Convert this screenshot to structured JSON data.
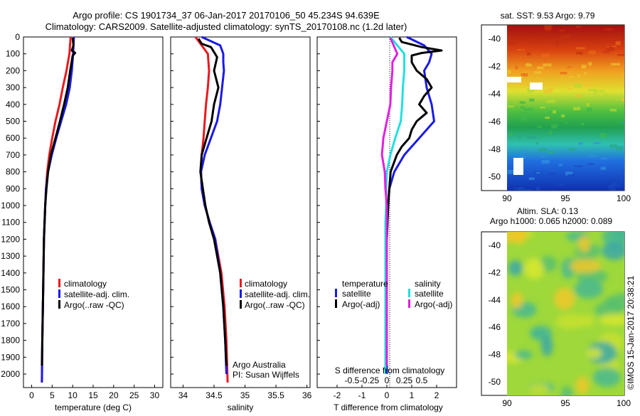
{
  "header": {
    "title_line1": "Argo profile: CS 1901734_37 06-Jan-2017 20170106_50 45.234S 94.639E",
    "title_line2": "Climatology: CARS2009. Satellite-adjusted climatology: synTS_20170108.nc (1.2d later)"
  },
  "colors": {
    "red": "#e8191f",
    "blue": "#1a1ae6",
    "black": "#000000",
    "cyan": "#22e0e0",
    "magenta": "#e020e0"
  },
  "depth_ticks": [
    "0",
    "100",
    "200",
    "300",
    "400",
    "500",
    "600",
    "700",
    "800",
    "900",
    "1000",
    "1100",
    "1200",
    "1300",
    "1400",
    "1500",
    "1600",
    "1700",
    "1800",
    "1900",
    "2000"
  ],
  "chart_data": [
    {
      "type": "line",
      "xlabel": "temperature (deg C)",
      "xticks": [
        "0",
        "5",
        "10",
        "15",
        "20",
        "25",
        "30"
      ],
      "xlim": [
        -2,
        32
      ],
      "ylim": [
        2080,
        0
      ],
      "legend": [
        "climatology",
        "satellite-adj. clim.",
        "Argo(..raw -QC)"
      ],
      "series": [
        {
          "name": "climatology",
          "color": "red",
          "depth": [
            0,
            100,
            200,
            300,
            400,
            500,
            600,
            700,
            800,
            900,
            1000,
            1200,
            1500,
            1800,
            2050
          ],
          "values": [
            9.5,
            9.2,
            8.5,
            7.6,
            6.8,
            5.8,
            5.0,
            4.3,
            3.8,
            3.5,
            3.3,
            3.0,
            2.8,
            2.6,
            2.5
          ]
        },
        {
          "name": "satellite-adj. clim.",
          "color": "blue",
          "depth": [
            0,
            100,
            200,
            300,
            400,
            500,
            600,
            700,
            800,
            900,
            1000,
            1200,
            1500,
            1800,
            2050
          ],
          "values": [
            10.3,
            10.1,
            9.8,
            9.3,
            8.4,
            7.2,
            6.0,
            4.9,
            4.0,
            3.5,
            3.3,
            3.0,
            2.8,
            2.6,
            2.5
          ]
        },
        {
          "name": "Argo(..raw -QC)",
          "color": "black",
          "depth": [
            5,
            50,
            80,
            95,
            110,
            200,
            300,
            400,
            500,
            600,
            700,
            800,
            900,
            1000,
            1200,
            1500,
            1800,
            1950
          ],
          "values": [
            10.0,
            10.2,
            9.8,
            10.6,
            10.0,
            9.4,
            8.8,
            7.9,
            6.9,
            5.8,
            4.7,
            4.0,
            3.6,
            3.3,
            3.0,
            2.8,
            2.6,
            2.5
          ]
        }
      ]
    },
    {
      "type": "line",
      "xlabel": "salinity",
      "xticks": [
        "34",
        "34.5",
        "35",
        "35.5",
        "36"
      ],
      "xlim": [
        33.8,
        36.05
      ],
      "ylim": [
        2080,
        0
      ],
      "legend": [
        "climatology",
        "satellite-adj. clim.",
        "Argo(..raw -QC)"
      ],
      "annotation": [
        "Argo Australia",
        "PI: Susan Wijffels"
      ],
      "series": [
        {
          "name": "climatology",
          "color": "red",
          "depth": [
            0,
            50,
            100,
            200,
            300,
            400,
            500,
            600,
            700,
            800,
            900,
            1000,
            1100,
            1200,
            1400,
            1600,
            1800,
            2050
          ],
          "values": [
            34.2,
            34.3,
            34.4,
            34.42,
            34.4,
            34.37,
            34.35,
            34.33,
            34.3,
            34.29,
            34.3,
            34.35,
            34.43,
            34.52,
            34.62,
            34.67,
            34.7,
            34.72
          ]
        },
        {
          "name": "satellite-adj. clim.",
          "color": "blue",
          "depth": [
            0,
            50,
            100,
            150,
            200,
            300,
            400,
            500,
            600,
            700,
            800,
            900,
            1000,
            1100,
            1200,
            1400,
            1600,
            1800,
            2000
          ],
          "values": [
            34.3,
            34.6,
            34.65,
            34.65,
            34.66,
            34.63,
            34.6,
            34.55,
            34.45,
            34.35,
            34.29,
            34.3,
            34.35,
            34.43,
            34.52,
            34.6,
            34.65,
            34.68,
            34.7
          ]
        },
        {
          "name": "Argo(..raw -QC)",
          "color": "black",
          "depth": [
            10,
            40,
            60,
            90,
            120,
            200,
            300,
            400,
            500,
            600,
            700,
            800,
            900,
            1000,
            1100,
            1200,
            1400,
            1600,
            1800,
            1950
          ],
          "values": [
            34.25,
            34.3,
            34.45,
            34.5,
            34.55,
            34.5,
            34.57,
            34.5,
            34.46,
            34.38,
            34.3,
            34.28,
            34.32,
            34.36,
            34.42,
            34.5,
            34.6,
            34.65,
            34.68,
            34.7
          ]
        }
      ]
    },
    {
      "type": "line",
      "xlabel": "T difference from climatology",
      "xticks": [
        "-2",
        "-1",
        "0",
        "1",
        "2"
      ],
      "xlim": [
        -2.8,
        2.8
      ],
      "ylim": [
        2080,
        0
      ],
      "secondary_label": "S difference from climatology",
      "secondary_ticks": [
        "-0.5",
        "-0.25",
        "0",
        "0.25",
        "0.5"
      ],
      "secondary_tick_values": [
        -0.5,
        -0.25,
        0,
        0.25,
        0.5
      ],
      "legend_title_t": "temperature",
      "legend_title_s": "salinity",
      "legend_t": [
        "satellite",
        "Argo(-adj)"
      ],
      "legend_s": [
        "satellite",
        "Argo(-adj)"
      ],
      "series": [
        {
          "name": "satellite",
          "group": "temperature",
          "color": "blue",
          "depth": [
            0,
            50,
            100,
            150,
            200,
            300,
            400,
            500,
            600,
            700,
            800,
            900,
            1000,
            1200,
            1500,
            1800,
            2000
          ],
          "values": [
            0.8,
            1.5,
            1.8,
            1.7,
            1.5,
            1.6,
            1.8,
            1.9,
            1.3,
            0.7,
            0.3,
            0.1,
            0.05,
            0.0,
            0.0,
            0.0,
            0.0
          ]
        },
        {
          "name": "Argo(-adj)",
          "group": "temperature",
          "color": "black",
          "depth": [
            5,
            30,
            60,
            80,
            95,
            110,
            150,
            200,
            250,
            300,
            350,
            400,
            450,
            500,
            550,
            600,
            650,
            700,
            800,
            900,
            1000,
            1200,
            1500,
            1800,
            1950
          ],
          "values": [
            0.5,
            0.6,
            1.4,
            2.2,
            1.4,
            1.0,
            1.0,
            1.2,
            1.6,
            1.8,
            1.5,
            1.3,
            1.6,
            1.2,
            1.0,
            0.9,
            0.6,
            0.4,
            0.15,
            0.1,
            0.05,
            0.0,
            0.0,
            -0.05,
            -0.05
          ]
        },
        {
          "name": "satellite",
          "group": "salinity",
          "color": "cyan",
          "depth": [
            0,
            100,
            200,
            300,
            400,
            500,
            600,
            700,
            800,
            900,
            1000,
            1100,
            1200,
            1400,
            1600,
            1800,
            2000
          ],
          "values": [
            0.05,
            0.25,
            0.25,
            0.23,
            0.22,
            0.2,
            0.12,
            0.05,
            0.0,
            -0.01,
            -0.01,
            -0.02,
            -0.02,
            -0.02,
            -0.02,
            -0.02,
            -0.02
          ]
        },
        {
          "name": "Argo(-adj)",
          "group": "salinity",
          "color": "magenta",
          "depth": [
            5,
            100,
            150,
            200,
            300,
            400,
            500,
            600,
            700,
            800,
            900,
            1000,
            1100,
            1200,
            1500,
            1800,
            1950
          ],
          "values": [
            0.05,
            0.15,
            0.08,
            0.08,
            0.06,
            0.05,
            0.0,
            -0.05,
            -0.07,
            -0.03,
            -0.02,
            0.0,
            0.0,
            0.0,
            0.0,
            0.0,
            0.0
          ]
        }
      ]
    },
    {
      "type": "heatmap",
      "title": "sat. SST: 9.53 Argo: 9.79",
      "xticks": [
        "90",
        "95",
        "100"
      ],
      "yticks": [
        "-40",
        "-42",
        "-44",
        "-46",
        "-48",
        "-50"
      ]
    },
    {
      "type": "heatmap",
      "title_line1": "Altim. SLA: 0.13",
      "title_line2": "Argo h1000: 0.065 h2000: 0.089",
      "xticks": [
        "90",
        "95",
        "100"
      ],
      "yticks": [
        "-40",
        "-42",
        "-44",
        "-46",
        "-48",
        "-50"
      ]
    }
  ],
  "credit": "©IMOS 15-Jan-2017 20:38:21"
}
